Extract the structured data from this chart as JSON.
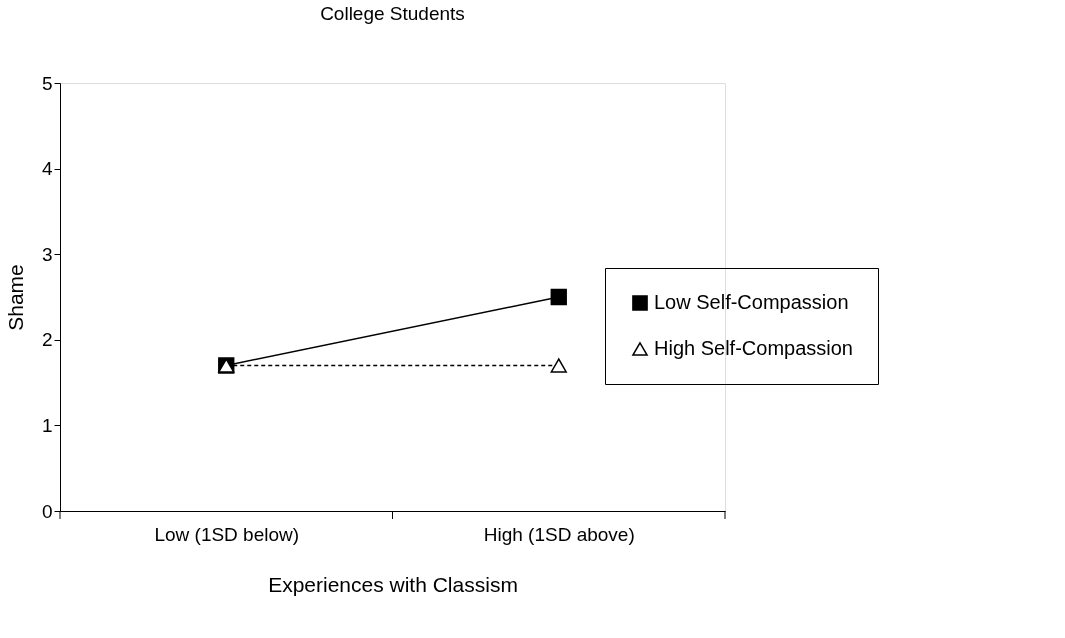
{
  "chart_data": {
    "type": "line",
    "title": "College Students",
    "xlabel": "Experiences with Classism",
    "ylabel": "Shame",
    "categories": [
      "Low (1SD below)",
      "High (1SD above)"
    ],
    "series": [
      {
        "name": "Low Self-Compassion",
        "color": "#000000",
        "values": [
          1.7,
          2.5
        ],
        "marker": "square",
        "line_style": "solid"
      },
      {
        "name": "High Self-Compassion",
        "color": "#000000",
        "values": [
          1.7,
          1.7
        ],
        "marker": "triangle",
        "line_style": "dashed"
      }
    ],
    "ylim": [
      0,
      5
    ],
    "yticks": [
      0,
      1,
      2,
      3,
      4,
      5
    ],
    "grid": false,
    "legend": "right"
  }
}
